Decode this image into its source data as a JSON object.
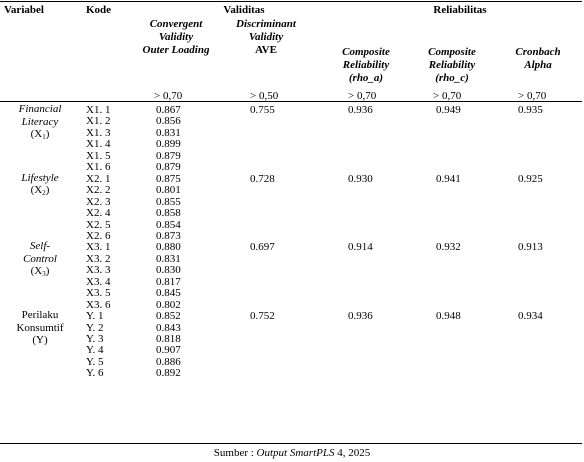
{
  "headers": {
    "variabel": "Variabel",
    "kode": "Kode",
    "validitas": "Validitas",
    "reliabilitas": "Reliabilitas",
    "convergent_lines": [
      "Convergent",
      "Validity",
      "Outer Loading"
    ],
    "discriminant_lines": [
      "Discriminant",
      "Validity"
    ],
    "ave": "AVE",
    "rho_a_lines": [
      "Composite",
      "Reliability",
      "(rho_a)"
    ],
    "rho_c_lines": [
      "Composite",
      "Reliability",
      "(rho_c)"
    ],
    "cronbach_lines": [
      "Cronbach",
      "Alpha"
    ]
  },
  "thresholds": {
    "outer_loading": "> 0,70",
    "ave": "> 0,50",
    "rho_a": "> 0,70",
    "rho_c": "> 0,70",
    "alpha": "> 0,70"
  },
  "groups": [
    {
      "var_lines": [
        "Financial",
        "Literacy"
      ],
      "var_italic": true,
      "var_code": "X",
      "var_sub": "1",
      "ave": "0.755",
      "rho_a": "0.936",
      "rho_c": "0.949",
      "alpha": "0.935",
      "items": [
        {
          "kode": "X1. 1",
          "loading": "0.867"
        },
        {
          "kode": "X1. 2",
          "loading": "0.856"
        },
        {
          "kode": "X1. 3",
          "loading": "0.831"
        },
        {
          "kode": "X1. 4",
          "loading": "0.899"
        },
        {
          "kode": "X1. 5",
          "loading": "0.879"
        },
        {
          "kode": "X1. 6",
          "loading": "0.879"
        }
      ]
    },
    {
      "var_lines": [
        "Lifestyle"
      ],
      "var_italic": true,
      "var_code": "X",
      "var_sub": "2",
      "ave": "0.728",
      "rho_a": "0.930",
      "rho_c": "0.941",
      "alpha": "0.925",
      "items": [
        {
          "kode": "X2. 1",
          "loading": "0.875"
        },
        {
          "kode": "X2. 2",
          "loading": "0.801"
        },
        {
          "kode": "X2. 3",
          "loading": "0.855"
        },
        {
          "kode": "X2. 4",
          "loading": "0.858"
        },
        {
          "kode": "X2. 5",
          "loading": "0.854"
        },
        {
          "kode": "X2. 6",
          "loading": "0.873"
        }
      ]
    },
    {
      "var_lines": [
        "Self-",
        "Control"
      ],
      "var_italic": true,
      "var_code": "X",
      "var_sub": "3",
      "ave": "0.697",
      "rho_a": "0.914",
      "rho_c": "0.932",
      "alpha": "0.913",
      "items": [
        {
          "kode": "X3. 1",
          "loading": "0.880"
        },
        {
          "kode": "X3. 2",
          "loading": "0.831"
        },
        {
          "kode": "X3. 3",
          "loading": "0.830"
        },
        {
          "kode": "X3. 4",
          "loading": "0.817"
        },
        {
          "kode": "X3. 5",
          "loading": "0.845"
        },
        {
          "kode": "X3. 6",
          "loading": "0.802"
        }
      ]
    },
    {
      "var_lines": [
        "Perilaku",
        "Konsumtif"
      ],
      "var_italic": false,
      "var_code": "(Y)",
      "var_sub": "",
      "ave": "0.752",
      "rho_a": "0.936",
      "rho_c": "0.948",
      "alpha": "0.934",
      "items": [
        {
          "kode": "Y. 1",
          "loading": "0.852"
        },
        {
          "kode": "Y. 2",
          "loading": "0.843"
        },
        {
          "kode": "Y. 3",
          "loading": "0.818"
        },
        {
          "kode": "Y. 4",
          "loading": "0.907"
        },
        {
          "kode": "Y. 5",
          "loading": "0.886"
        },
        {
          "kode": "Y. 6",
          "loading": "0.892"
        }
      ]
    }
  ],
  "source": {
    "prefix": "Sumber : ",
    "italic": "Output SmartPLS",
    "suffix": " 4, 2025"
  }
}
